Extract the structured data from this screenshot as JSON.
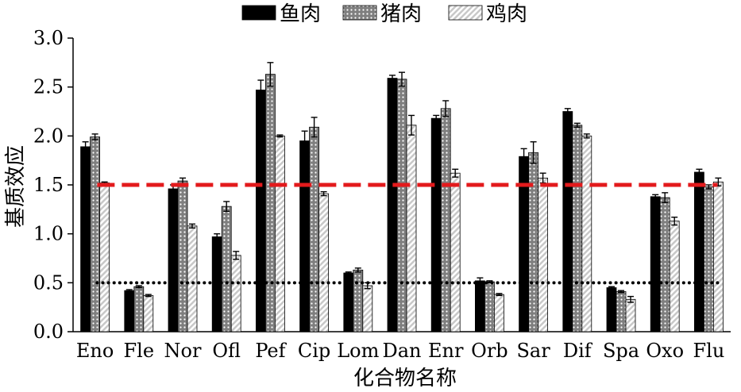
{
  "chart_data": {
    "type": "bar",
    "xlabel": "化合物名称",
    "ylabel": "基质效应",
    "ylim": [
      0,
      3.0
    ],
    "yticks": [
      "0.0",
      "0.5",
      "1.0",
      "1.5",
      "2.0",
      "2.5",
      "3.0"
    ],
    "legend_position": "top",
    "categories": [
      "Eno",
      "Fle",
      "Nor",
      "Ofl",
      "Pef",
      "Cip",
      "Lom",
      "Dan",
      "Enr",
      "Orb",
      "Sar",
      "Dif",
      "Spa",
      "Oxo",
      "Flu"
    ],
    "series": [
      {
        "name": "鱼肉",
        "values": [
          1.89,
          0.42,
          1.46,
          0.97,
          2.47,
          1.95,
          0.6,
          2.59,
          2.18,
          0.52,
          1.79,
          2.25,
          0.45,
          1.38,
          1.63
        ],
        "errors": [
          0.05,
          0.01,
          0.04,
          0.03,
          0.1,
          0.1,
          0.01,
          0.03,
          0.03,
          0.03,
          0.08,
          0.03,
          0.01,
          0.02,
          0.03
        ]
      },
      {
        "name": "猪肉",
        "values": [
          1.99,
          0.46,
          1.54,
          1.28,
          2.63,
          2.09,
          0.63,
          2.58,
          2.28,
          0.51,
          1.83,
          2.11,
          0.41,
          1.37,
          1.48
        ],
        "errors": [
          0.03,
          0.01,
          0.03,
          0.05,
          0.12,
          0.1,
          0.02,
          0.07,
          0.08,
          0.01,
          0.11,
          0.02,
          0.01,
          0.05,
          0.02
        ]
      },
      {
        "name": "鸡肉",
        "values": [
          1.52,
          0.37,
          1.08,
          0.78,
          2.0,
          1.41,
          0.47,
          2.11,
          1.62,
          0.38,
          1.57,
          2.0,
          0.33,
          1.13,
          1.53
        ],
        "errors": [
          0.01,
          0.01,
          0.02,
          0.04,
          0.01,
          0.02,
          0.03,
          0.1,
          0.04,
          0.01,
          0.05,
          0.02,
          0.03,
          0.04,
          0.04
        ]
      }
    ],
    "reference_lines": [
      {
        "value": 1.5,
        "color": "#e31a1c",
        "style": "dashed"
      },
      {
        "value": 0.5,
        "color": "#000000",
        "style": "dotted"
      }
    ],
    "colors": [
      "#000000",
      "#808080",
      "#d9d9d9"
    ],
    "grid": false
  }
}
